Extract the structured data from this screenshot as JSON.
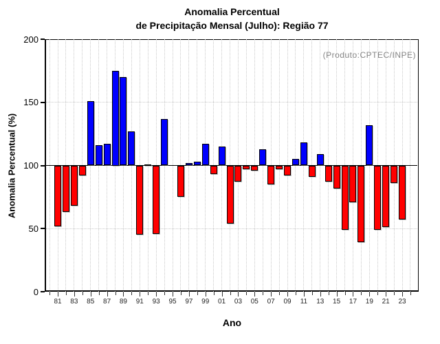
{
  "title": {
    "line1": "Anomalia Percentual",
    "line2": "de Precipitação Mensal (Julho): Região 77"
  },
  "annotation": {
    "text": "(Produto:CPTEC/INPE)",
    "color": "#848484"
  },
  "axes": {
    "x_label": "Ano",
    "y_label": "Anomalia Percentual (%)"
  },
  "chart_data": {
    "type": "bar",
    "title": "Anomalia Percentual de Precipitação Mensal (Julho): Região 77",
    "xlabel": "Ano",
    "ylabel": "Anomalia Percentual (%)",
    "ylim": [
      0,
      200
    ],
    "yticks": [
      0,
      50,
      100,
      150,
      200
    ],
    "baseline": 100,
    "grid": {
      "horizontal_dotted_at": [
        50,
        150
      ],
      "vertical_dotted": "every-year",
      "baseline_solid_at": 100
    },
    "bar_colors": {
      "above_baseline": "#0000ff",
      "below_baseline": "#ff0000"
    },
    "legend": "none",
    "xtick_labeled_years": [
      "81",
      "83",
      "85",
      "87",
      "89",
      "91",
      "93",
      "95",
      "97",
      "99",
      "01",
      "03",
      "05",
      "07",
      "09",
      "11",
      "13",
      "15",
      "17",
      "19",
      "21",
      "23"
    ],
    "x_minor_tick_years_range": [
      1980,
      2024
    ],
    "years": [
      1981,
      1982,
      1983,
      1984,
      1985,
      1986,
      1987,
      1988,
      1989,
      1990,
      1991,
      1992,
      1993,
      1994,
      1995,
      1996,
      1997,
      1998,
      1999,
      2000,
      2001,
      2002,
      2003,
      2004,
      2005,
      2006,
      2007,
      2008,
      2009,
      2010,
      2011,
      2012,
      2013,
      2014,
      2015,
      2016,
      2017,
      2018,
      2019,
      2020,
      2021,
      2022,
      2023
    ],
    "values": [
      52,
      63,
      68,
      92,
      151,
      116,
      117,
      175,
      170,
      127,
      45,
      101,
      46,
      137,
      100,
      75,
      102,
      103,
      117,
      93,
      115,
      54,
      87,
      97,
      96,
      113,
      85,
      97,
      92,
      105,
      118,
      91,
      109,
      87,
      82,
      49,
      71,
      39,
      132,
      49,
      51,
      86,
      57
    ]
  }
}
